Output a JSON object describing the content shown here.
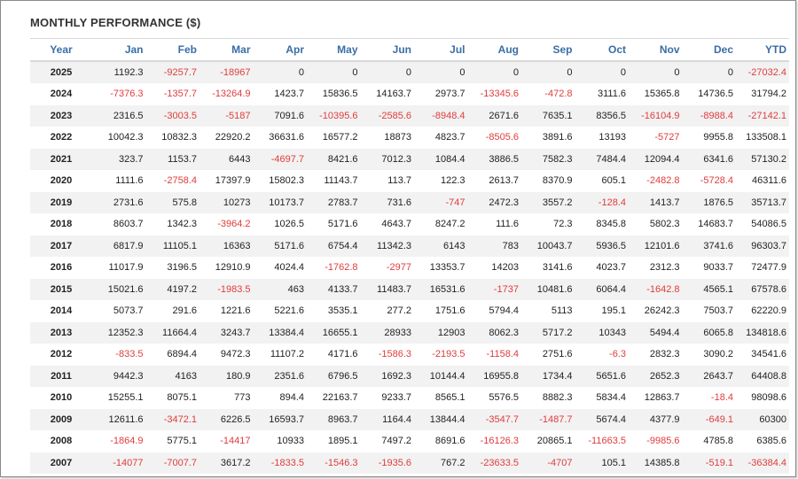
{
  "title": "MONTHLY PERFORMANCE ($)",
  "columns": [
    "Year",
    "Jan",
    "Feb",
    "Mar",
    "Apr",
    "May",
    "Jun",
    "Jul",
    "Aug",
    "Sep",
    "Oct",
    "Nov",
    "Dec",
    "YTD"
  ],
  "colors": {
    "header_text": "#3a6ea5",
    "negative": "#e03c3c",
    "positive": "#222222",
    "stripe": "#f2f2f2"
  },
  "rows": [
    {
      "year": "2025",
      "values": [
        "1192.3",
        "-9257.7",
        "-18967",
        "0",
        "0",
        "0",
        "0",
        "0",
        "0",
        "0",
        "0",
        "0",
        "-27032.4"
      ]
    },
    {
      "year": "2024",
      "values": [
        "-7376.3",
        "-1357.7",
        "-13264.9",
        "1423.7",
        "15836.5",
        "14163.7",
        "2973.7",
        "-13345.6",
        "-472.8",
        "3111.6",
        "15365.8",
        "14736.5",
        "31794.2"
      ]
    },
    {
      "year": "2023",
      "values": [
        "2316.5",
        "-3003.5",
        "-5187",
        "7091.6",
        "-10395.6",
        "-2585.6",
        "-8948.4",
        "2671.6",
        "7635.1",
        "8356.5",
        "-16104.9",
        "-8988.4",
        "-27142.1"
      ]
    },
    {
      "year": "2022",
      "values": [
        "10042.3",
        "10832.3",
        "22920.2",
        "36631.6",
        "16577.2",
        "18873",
        "4823.7",
        "-8505.6",
        "3891.6",
        "13193",
        "-5727",
        "9955.8",
        "133508.1"
      ]
    },
    {
      "year": "2021",
      "values": [
        "323.7",
        "1153.7",
        "6443",
        "-4697.7",
        "8421.6",
        "7012.3",
        "1084.4",
        "3886.5",
        "7582.3",
        "7484.4",
        "12094.4",
        "6341.6",
        "57130.2"
      ]
    },
    {
      "year": "2020",
      "values": [
        "1111.6",
        "-2758.4",
        "17397.9",
        "15802.3",
        "11143.7",
        "113.7",
        "122.3",
        "2613.7",
        "8370.9",
        "605.1",
        "-2482.8",
        "-5728.4",
        "46311.6"
      ]
    },
    {
      "year": "2019",
      "values": [
        "2731.6",
        "575.8",
        "10273",
        "10173.7",
        "2783.7",
        "731.6",
        "-747",
        "2472.3",
        "3557.2",
        "-128.4",
        "1413.7",
        "1876.5",
        "35713.7"
      ]
    },
    {
      "year": "2018",
      "values": [
        "8603.7",
        "1342.3",
        "-3964.2",
        "1026.5",
        "5171.6",
        "4643.7",
        "8247.2",
        "111.6",
        "72.3",
        "8345.8",
        "5802.3",
        "14683.7",
        "54086.5"
      ]
    },
    {
      "year": "2017",
      "values": [
        "6817.9",
        "11105.1",
        "16363",
        "5171.6",
        "6754.4",
        "11342.3",
        "6143",
        "783",
        "10043.7",
        "5936.5",
        "12101.6",
        "3741.6",
        "96303.7"
      ]
    },
    {
      "year": "2016",
      "values": [
        "11017.9",
        "3196.5",
        "12910.9",
        "4024.4",
        "-1762.8",
        "-2977",
        "13353.7",
        "14203",
        "3141.6",
        "4023.7",
        "2312.3",
        "9033.7",
        "72477.9"
      ]
    },
    {
      "year": "2015",
      "values": [
        "15021.6",
        "4197.2",
        "-1983.5",
        "463",
        "4133.7",
        "11483.7",
        "16531.6",
        "-1737",
        "10481.6",
        "6064.4",
        "-1642.8",
        "4565.1",
        "67578.6"
      ]
    },
    {
      "year": "2014",
      "values": [
        "5073.7",
        "291.6",
        "1221.6",
        "5221.6",
        "3535.1",
        "277.2",
        "1751.6",
        "5794.4",
        "5113",
        "195.1",
        "26242.3",
        "7503.7",
        "62220.9"
      ]
    },
    {
      "year": "2013",
      "values": [
        "12352.3",
        "11664.4",
        "3243.7",
        "13384.4",
        "16655.1",
        "28933",
        "12903",
        "8062.3",
        "5717.2",
        "10343",
        "5494.4",
        "6065.8",
        "134818.6"
      ]
    },
    {
      "year": "2012",
      "values": [
        "-833.5",
        "6894.4",
        "9472.3",
        "11107.2",
        "4171.6",
        "-1586.3",
        "-2193.5",
        "-1158.4",
        "2751.6",
        "-6.3",
        "2832.3",
        "3090.2",
        "34541.6"
      ]
    },
    {
      "year": "2011",
      "values": [
        "9442.3",
        "4163",
        "180.9",
        "2351.6",
        "6796.5",
        "1692.3",
        "10144.4",
        "16955.8",
        "1734.4",
        "5651.6",
        "2652.3",
        "2643.7",
        "64408.8"
      ]
    },
    {
      "year": "2010",
      "values": [
        "15255.1",
        "8075.1",
        "773",
        "894.4",
        "22163.7",
        "9233.7",
        "8565.1",
        "5576.5",
        "8882.3",
        "5834.4",
        "12863.7",
        "-18.4",
        "98098.6"
      ]
    },
    {
      "year": "2009",
      "values": [
        "12611.6",
        "-3472.1",
        "6226.5",
        "16593.7",
        "8963.7",
        "1164.4",
        "13844.4",
        "-3547.7",
        "-1487.7",
        "5674.4",
        "4377.9",
        "-649.1",
        "60300"
      ]
    },
    {
      "year": "2008",
      "values": [
        "-1864.9",
        "5775.1",
        "-14417",
        "10933",
        "1895.1",
        "7497.2",
        "8691.6",
        "-16126.3",
        "20865.1",
        "-11663.5",
        "-9985.6",
        "4785.8",
        "6385.6"
      ]
    },
    {
      "year": "2007",
      "values": [
        "-14077",
        "-7007.7",
        "3617.2",
        "-1833.5",
        "-1546.3",
        "-1935.6",
        "767.2",
        "-23633.5",
        "-4707",
        "105.1",
        "14385.8",
        "-519.1",
        "-36384.4"
      ]
    }
  ]
}
